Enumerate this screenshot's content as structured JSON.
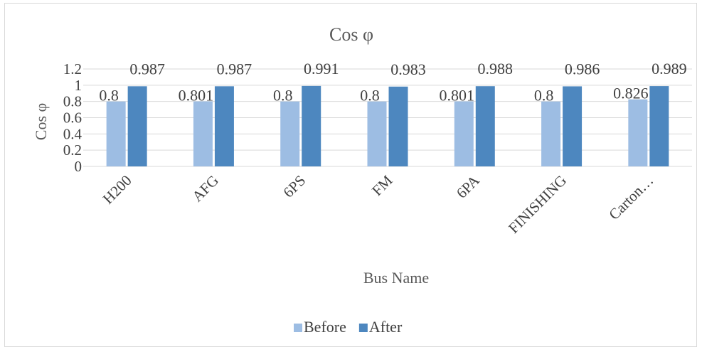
{
  "chart_data": {
    "type": "bar",
    "title": "Cos φ",
    "xlabel": "Bus Name",
    "ylabel": "Cos φ",
    "ylim": [
      0,
      1.2
    ],
    "yticks": [
      "0",
      "0.2",
      "0.4",
      "0.6",
      "0.8",
      "1",
      "1.2"
    ],
    "grid": true,
    "legend_position": "bottom",
    "categories": [
      "H200",
      "AFG",
      "6PS",
      "FM",
      "6PA",
      "FINISHING",
      "Carton…"
    ],
    "series": [
      {
        "name": "Before",
        "color": "#9dbde3",
        "values": [
          0.8,
          0.801,
          0.8,
          0.8,
          0.801,
          0.8,
          0.826
        ],
        "labels": [
          "0.8",
          "0.801",
          "0.8",
          "0.8",
          "0.801",
          "0.8",
          "0.826"
        ]
      },
      {
        "name": "After",
        "color": "#4d87bf",
        "values": [
          0.987,
          0.987,
          0.991,
          0.983,
          0.988,
          0.986,
          0.989
        ],
        "labels": [
          "0.987",
          "0.987",
          "0.991",
          "0.983",
          "0.988",
          "0.986",
          "0.989"
        ]
      }
    ]
  }
}
